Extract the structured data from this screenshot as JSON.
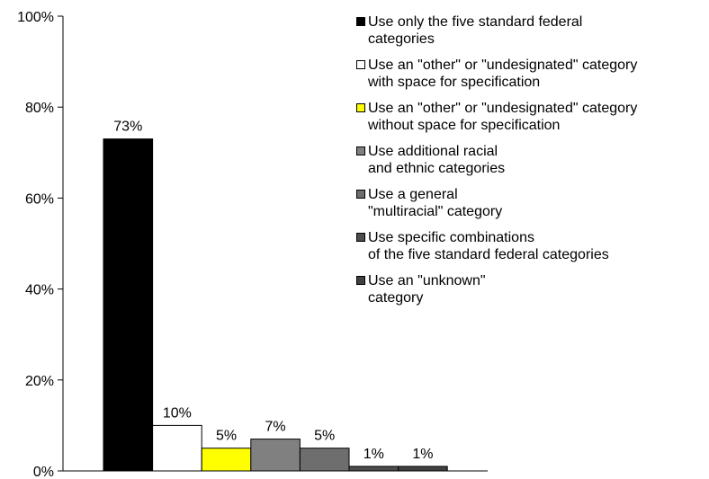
{
  "chart_data": {
    "type": "bar",
    "title": "",
    "xlabel": "",
    "ylabel": "",
    "ylim": [
      0,
      100
    ],
    "y_ticks": [
      0,
      20,
      40,
      60,
      80,
      100
    ],
    "y_tick_labels": [
      "0%",
      "20%",
      "40%",
      "60%",
      "80%",
      "100%"
    ],
    "grid": false,
    "legend_position": "top-right",
    "series": [
      {
        "name": "Use only the five standard federal\ncategories",
        "value": 73,
        "label": "73%",
        "color": "#000000"
      },
      {
        "name": "Use an \"other\" or \"undesignated\" category\nwith space for specification",
        "value": 10,
        "label": "10%",
        "color": "#ffffff"
      },
      {
        "name": "Use an \"other\" or \"undesignated\" category\nwithout space for specification",
        "value": 5,
        "label": "5%",
        "color": "#ffff00"
      },
      {
        "name": "Use additional racial\nand ethnic categories",
        "value": 7,
        "label": "7%",
        "color": "#808080"
      },
      {
        "name": "Use a general\n\"multiracial\" category",
        "value": 5,
        "label": "5%",
        "color": "#6e6e6e"
      },
      {
        "name": "Use specific combinations\nof the five standard federal categories",
        "value": 1,
        "label": "1%",
        "color": "#4d4d4d"
      },
      {
        "name": "Use an \"unknown\"\ncategory",
        "value": 1,
        "label": "1%",
        "color": "#404040"
      }
    ]
  }
}
